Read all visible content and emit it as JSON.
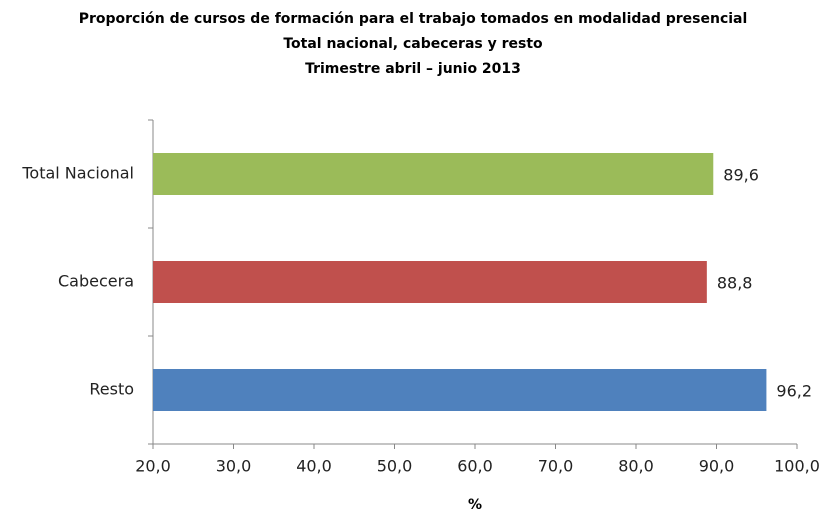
{
  "chart_data": {
    "type": "bar",
    "orientation": "horizontal",
    "title": [
      "Proporción de cursos de formación para el trabajo tomados en modalidad presencial",
      "Total nacional, cabeceras y resto",
      "Trimestre abril – junio 2013"
    ],
    "categories": [
      "Total Nacional",
      "Cabecera",
      "Resto"
    ],
    "values": [
      89.6,
      88.8,
      96.2
    ],
    "value_labels": [
      "89,6",
      "88,8",
      "96,2"
    ],
    "colors": [
      "#9bbb59",
      "#c0504d",
      "#4f81bd"
    ],
    "xlim": [
      20,
      100
    ],
    "xticks": [
      {
        "value": 20,
        "label": "20,0"
      },
      {
        "value": 30,
        "label": "30,0"
      },
      {
        "value": 40,
        "label": "40,0"
      },
      {
        "value": 50,
        "label": "50,0"
      },
      {
        "value": 60,
        "label": "60,0"
      },
      {
        "value": 70,
        "label": "70,0"
      },
      {
        "value": 80,
        "label": "80,0"
      },
      {
        "value": 90,
        "label": "90,0"
      },
      {
        "value": 100,
        "label": "100,0"
      }
    ],
    "xlabel": "%",
    "grid": false
  }
}
